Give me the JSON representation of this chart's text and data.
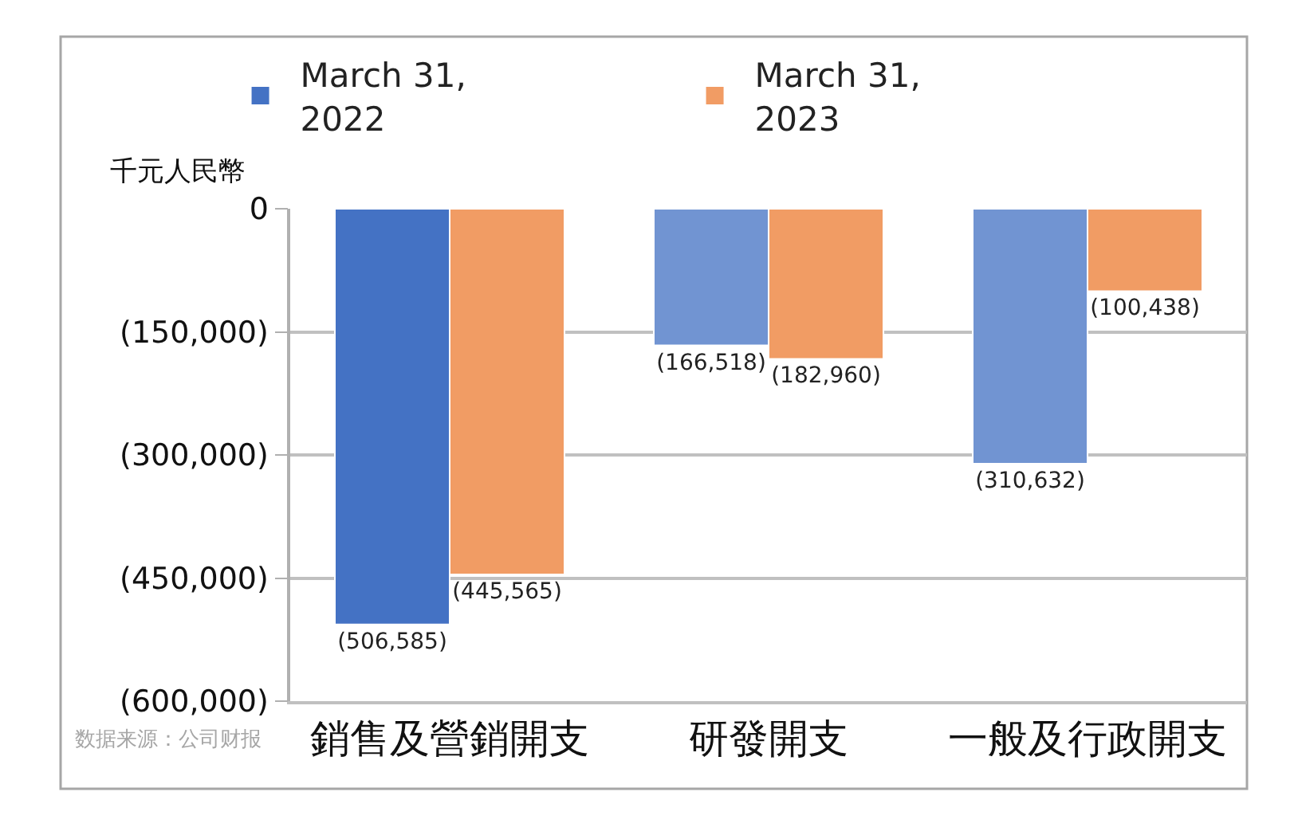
{
  "chart_data": {
    "type": "bar",
    "ylabel": "千元人民幣",
    "categories": [
      "銷售及營銷開支",
      "研發開支",
      "一般及行政開支"
    ],
    "series": [
      {
        "name": "March 31, 2022",
        "colors": [
          "#4472c4",
          "#7194d2",
          "#7194d2"
        ],
        "values": [
          -506585,
          -166518,
          -310632
        ],
        "value_labels": [
          "(506,585)",
          "(166,518)",
          "(310,632)"
        ]
      },
      {
        "name": "March 31, 2023",
        "color": "#f19c64",
        "values": [
          -445565,
          -182960,
          -100438
        ],
        "value_labels": [
          "(445,565)",
          "(182,960)",
          "(100,438)"
        ]
      }
    ],
    "ylim": [
      -600000,
      0
    ],
    "yticks": [
      0,
      {
        "value": -150000,
        "label": "(150,000)"
      },
      {
        "value": -300000,
        "label": "(300,000)"
      },
      {
        "value": -450000,
        "label": "(450,000)"
      },
      {
        "value": -600000,
        "label": "(600,000)"
      }
    ],
    "grid": "y",
    "legend": "top",
    "annotations": [
      "数据来源：公司财报"
    ]
  }
}
